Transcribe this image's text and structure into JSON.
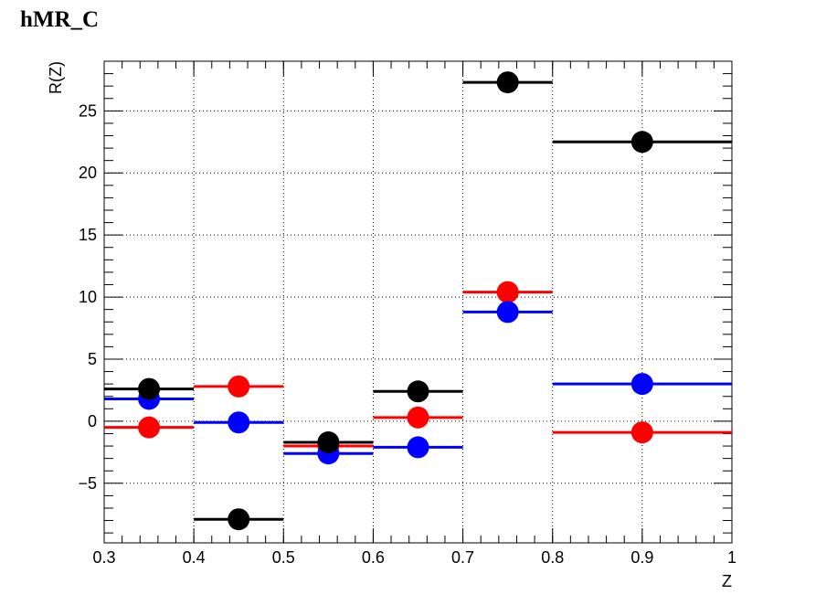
{
  "title": "hMR_C",
  "chart_data": {
    "type": "scatter",
    "title": "hMR_C",
    "xlabel": "Z",
    "ylabel": "R(Z)",
    "xlim": [
      0.3,
      1.0
    ],
    "ylim": [
      -9.8,
      29.0
    ],
    "grid": true,
    "x_ticks": [
      {
        "value": 0.3,
        "label": "0.3"
      },
      {
        "value": 0.4,
        "label": "0.4"
      },
      {
        "value": 0.5,
        "label": "0.5"
      },
      {
        "value": 0.6,
        "label": "0.6"
      },
      {
        "value": 0.7,
        "label": "0.7"
      },
      {
        "value": 0.8,
        "label": "0.8"
      },
      {
        "value": 0.9,
        "label": "0.9"
      },
      {
        "value": 1.0,
        "label": "1"
      }
    ],
    "y_ticks": [
      {
        "value": -5,
        "label": "−5"
      },
      {
        "value": 0,
        "label": "0"
      },
      {
        "value": 5,
        "label": "5"
      },
      {
        "value": 10,
        "label": "10"
      },
      {
        "value": 15,
        "label": "15"
      },
      {
        "value": 20,
        "label": "20"
      },
      {
        "value": 25,
        "label": "25"
      }
    ],
    "bins": [
      [
        0.3,
        0.4
      ],
      [
        0.4,
        0.5
      ],
      [
        0.5,
        0.6
      ],
      [
        0.6,
        0.7
      ],
      [
        0.7,
        0.8
      ],
      [
        0.8,
        1.0
      ]
    ],
    "x": [
      0.35,
      0.45,
      0.55,
      0.65,
      0.75,
      0.9
    ],
    "series": [
      {
        "color": "#ff0000",
        "values": [
          -0.5,
          2.8,
          -2.0,
          0.3,
          10.4,
          -0.9
        ]
      },
      {
        "color": "#0000ff",
        "values": [
          1.8,
          -0.1,
          -2.6,
          -2.1,
          8.8,
          3.0
        ]
      },
      {
        "color": "#000000",
        "values": [
          2.6,
          -7.9,
          -1.7,
          2.4,
          27.3,
          22.5
        ]
      }
    ]
  }
}
